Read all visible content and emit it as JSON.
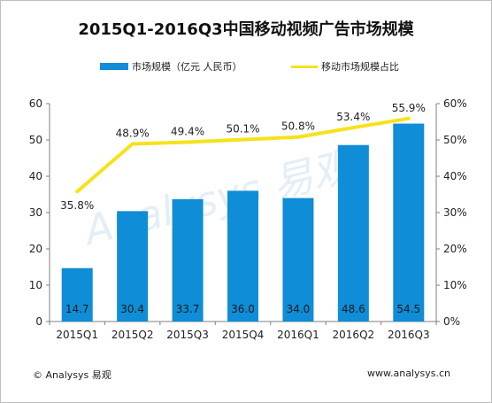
{
  "title": "2015Q1-2016Q3中国移动视频广告市场规模",
  "footer": {
    "copyright": "© Analysys 易观",
    "url": "www.analysys.cn"
  },
  "watermark": "Analysys 易观",
  "colors": {
    "bar": "#0f8dd6",
    "line": "#f5e21a",
    "axis": "#7f7f7f"
  },
  "chart_data": {
    "type": "bar",
    "categories": [
      "2015Q1",
      "2015Q2",
      "2015Q3",
      "2015Q4",
      "2016Q1",
      "2016Q2",
      "2016Q3"
    ],
    "series": [
      {
        "name": "市场规模（亿元 人民币）",
        "type": "bar",
        "axis": "left",
        "values": [
          14.7,
          30.4,
          33.7,
          36.0,
          34.0,
          48.6,
          54.5
        ],
        "labels": [
          "14.7",
          "30.4",
          "33.7",
          "36.0",
          "34.0",
          "48.6",
          "54.5"
        ]
      },
      {
        "name": "移动市场规模占比",
        "type": "line",
        "axis": "right",
        "values": [
          35.8,
          48.9,
          49.4,
          50.1,
          50.8,
          53.4,
          55.9
        ],
        "labels": [
          "35.8%",
          "48.9%",
          "49.4%",
          "50.1%",
          "50.8%",
          "53.4%",
          "55.9%"
        ]
      }
    ],
    "y_left": {
      "range": [
        0,
        60
      ],
      "ticks": [
        "0",
        "10",
        "20",
        "30",
        "40",
        "50",
        "60"
      ]
    },
    "y_right": {
      "range": [
        0,
        60
      ],
      "ticks": [
        "0%",
        "10%",
        "20%",
        "30%",
        "40%",
        "50%",
        "60%"
      ]
    },
    "grid": false,
    "legend": "top"
  }
}
